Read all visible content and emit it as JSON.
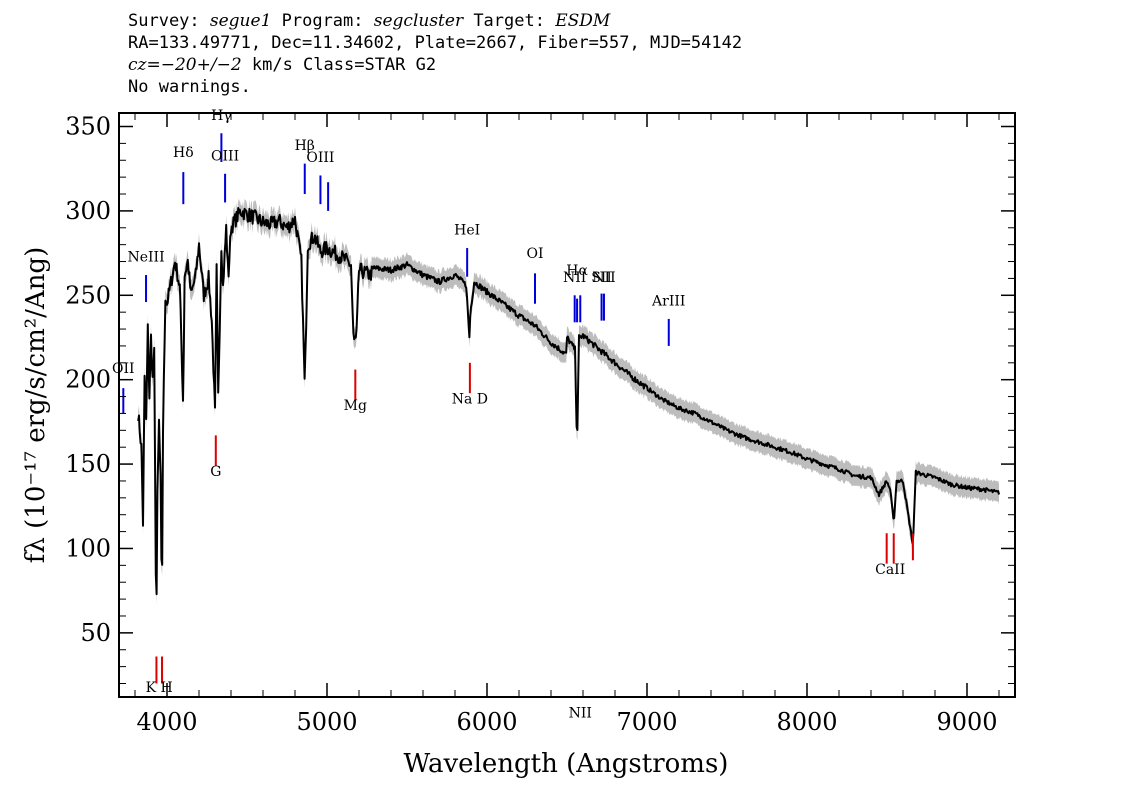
{
  "header": {
    "line1": {
      "survey_label": "Survey: ",
      "survey": "segue1",
      "program_label": " Program: ",
      "program": "segcluster",
      "target_label": " Target: ",
      "target": "ESDM"
    },
    "line2": "RA=133.49771, Dec=11.34602, Plate=2667, Fiber=557, MJD=54142",
    "line3": {
      "cz_label": "cz",
      "cz_value": "=−20+/−2",
      "cz_rest": " km/s Class=STAR G2"
    },
    "line4": "No warnings."
  },
  "colors": {
    "flux": "#000000",
    "error_band": "#bdbdbd",
    "emission": "#0000dd",
    "absorption": "#dd0000"
  },
  "chart_data": {
    "type": "line",
    "xlabel": "Wavelength (Angstroms)",
    "ylabel": "fλ (10⁻¹⁷ erg/s/cm²/Ang)",
    "xlim": [
      3700,
      9300
    ],
    "ylim": [
      12,
      358
    ],
    "x_ticks": [
      4000,
      5000,
      6000,
      7000,
      8000,
      9000
    ],
    "y_ticks": [
      50,
      100,
      150,
      200,
      250,
      300,
      350
    ],
    "grid": false,
    "series": [
      {
        "name": "",
        "x": [
          3820,
          3840,
          3850,
          3860,
          3870,
          3880,
          3890,
          3900,
          3910,
          3920,
          3933,
          3940,
          3950,
          3960,
          3968,
          3975,
          3990,
          4000,
          4020,
          4050,
          4080,
          4101,
          4110,
          4130,
          4150,
          4180,
          4200,
          4230,
          4260,
          4280,
          4300,
          4310,
          4320,
          4340,
          4350,
          4370,
          4383,
          4400,
          4430,
          4460,
          4500,
          4550,
          4600,
          4650,
          4700,
          4750,
          4800,
          4840,
          4861,
          4880,
          4920,
          4960,
          5000,
          5050,
          5100,
          5150,
          5167,
          5173,
          5183,
          5200,
          5270,
          5300,
          5400,
          5500,
          5600,
          5700,
          5800,
          5870,
          5890,
          5896,
          5920,
          6000,
          6100,
          6200,
          6300,
          6400,
          6495,
          6500,
          6550,
          6563,
          6575,
          6600,
          6700,
          6800,
          6900,
          7000,
          7100,
          7200,
          7300,
          7400,
          7500,
          7600,
          7700,
          7800,
          7900,
          8000,
          8100,
          8200,
          8300,
          8400,
          8450,
          8498,
          8520,
          8542,
          8560,
          8600,
          8662,
          8680,
          8800,
          8900,
          9000,
          9100,
          9200
        ],
        "y": [
          180,
          160,
          115,
          200,
          175,
          230,
          190,
          225,
          200,
          215,
          50,
          130,
          175,
          140,
          60,
          170,
          250,
          245,
          255,
          270,
          255,
          185,
          262,
          270,
          250,
          262,
          280,
          250,
          260,
          235,
          180,
          265,
          190,
          280,
          255,
          290,
          260,
          290,
          295,
          300,
          298,
          296,
          293,
          292,
          294,
          290,
          295,
          270,
          195,
          280,
          285,
          276,
          278,
          275,
          272,
          268,
          220,
          225,
          222,
          265,
          262,
          266,
          265,
          268,
          262,
          258,
          262,
          256,
          225,
          240,
          258,
          252,
          245,
          238,
          232,
          222,
          215,
          225,
          218,
          160,
          225,
          226,
          218,
          210,
          202,
          195,
          188,
          183,
          180,
          175,
          170,
          166,
          163,
          160,
          157,
          153,
          150,
          147,
          143,
          142,
          132,
          140,
          135,
          115,
          140,
          140,
          102,
          145,
          142,
          138,
          136,
          135,
          133
        ],
        "width": 2
      }
    ],
    "line_markers": {
      "emission": [
        {
          "label": "OII",
          "x": 3727,
          "top": 195,
          "bottom": 180,
          "label_y": 204
        },
        {
          "label": "NeIII",
          "x": 3869,
          "top": 262,
          "bottom": 246,
          "label_y": 270
        },
        {
          "label": "Hδ",
          "x": 4102,
          "top": 323,
          "bottom": 304,
          "label_y": 332
        },
        {
          "label": "Hγ",
          "x": 4340,
          "top": 346,
          "bottom": 329,
          "label_y": 354
        },
        {
          "label": "OIII",
          "x": 4363,
          "top": 322,
          "bottom": 305,
          "label_y": 330
        },
        {
          "label": "Hβ",
          "x": 4861,
          "top": 328,
          "bottom": 310,
          "label_y": 336
        },
        {
          "label": "OIII",
          "x": 4959,
          "top": 321,
          "bottom": 304,
          "label_y": 329
        },
        {
          "label": "",
          "x": 5007,
          "top": 317,
          "bottom": 300,
          "label_y": 0
        },
        {
          "label": "HeI",
          "x": 5876,
          "top": 278,
          "bottom": 261,
          "label_y": 286
        },
        {
          "label": "OI",
          "x": 6300,
          "top": 263,
          "bottom": 245,
          "label_y": 272
        },
        {
          "label": "NII",
          "x": 6548,
          "top": 250,
          "bottom": 234,
          "label_y": 258
        },
        {
          "label": "Hα",
          "x": 6563,
          "top": 248,
          "bottom": 234,
          "label_y": 262
        },
        {
          "label": "NII",
          "x": 6583,
          "top": 250,
          "bottom": 234,
          "label_y": 0
        },
        {
          "label": "SII",
          "x": 6716,
          "top": 251,
          "bottom": 235,
          "label_y": 258
        },
        {
          "label": "NII",
          "x": 6731,
          "top": 251,
          "bottom": 235,
          "label_y": 258
        },
        {
          "label": "ArIII",
          "x": 7136,
          "top": 236,
          "bottom": 220,
          "label_y": 244
        }
      ],
      "absorption": [
        {
          "label": "",
          "x": 3934,
          "top": 36,
          "bottom": 20
        },
        {
          "label": "",
          "x": 3969,
          "top": 36,
          "bottom": 20
        },
        {
          "label": "K H",
          "x": 3951,
          "label_y": 15
        },
        {
          "label": "G",
          "x": 4305,
          "top": 167,
          "bottom": 149,
          "label_y": 143
        },
        {
          "label": "Mg",
          "x": 5177,
          "top": 206,
          "bottom": 188,
          "label_y": 182
        },
        {
          "label": "Na D",
          "x": 5893,
          "top": 210,
          "bottom": 192,
          "label_y": 186
        },
        {
          "label": "",
          "x": 8498,
          "top": 109,
          "bottom": 91
        },
        {
          "label": "",
          "x": 8542,
          "top": 109,
          "bottom": 91
        },
        {
          "label": "",
          "x": 8662,
          "top": 109,
          "bottom": 93
        },
        {
          "label": "CaII",
          "x": 8520,
          "label_y": 85
        }
      ]
    }
  }
}
